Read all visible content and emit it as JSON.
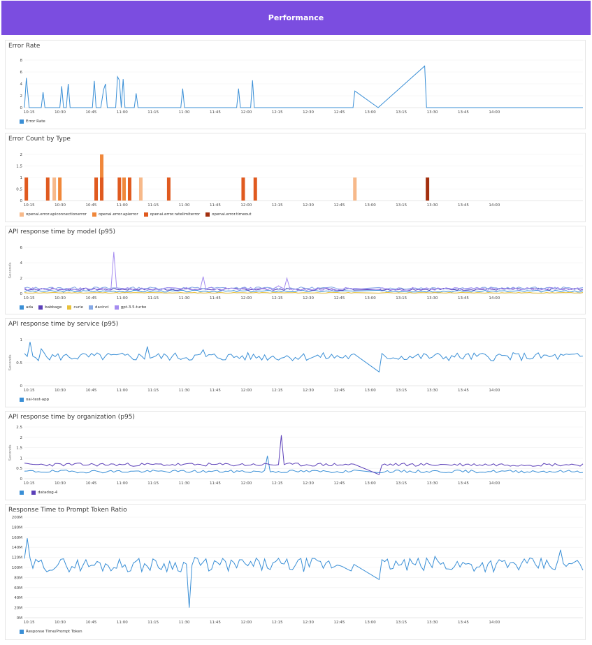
{
  "header": {
    "title": "Performance"
  },
  "colors": {
    "blue": "#3a8fd6",
    "indigo": "#5b3fb8",
    "yellow": "#e8c13a",
    "lightblue": "#86a9e6",
    "lavender": "#a58cf0",
    "peach": "#f7b98a",
    "orange": "#f0873a",
    "redorange": "#e05a1f",
    "darkred": "#a3300f"
  },
  "time_ticks": [
    "10:15",
    "10:30",
    "10:45",
    "11:00",
    "11:15",
    "11:30",
    "11:45",
    "12:00",
    "12:15",
    "12:30",
    "12:45",
    "13:00",
    "13:15",
    "13:30",
    "13:45",
    "14:00"
  ],
  "chart_data": [
    {
      "type": "line",
      "title": "Error Rate",
      "ylim": [
        0,
        8
      ],
      "yticks": [
        "0",
        "2",
        "4",
        "6",
        "8"
      ],
      "legend_placement": "bottom-left",
      "series": [
        {
          "name": "Error Rate",
          "color": "#3a8fd6",
          "points": [
            [
              10.2,
              0
            ],
            [
              10.22,
              5
            ],
            [
              10.25,
              0
            ],
            [
              10.38,
              0
            ],
            [
              10.4,
              2.6
            ],
            [
              10.42,
              0
            ],
            [
              10.58,
              0
            ],
            [
              10.6,
              3.6
            ],
            [
              10.62,
              0
            ],
            [
              10.65,
              0
            ],
            [
              10.67,
              4
            ],
            [
              10.69,
              0
            ],
            [
              10.93,
              0
            ],
            [
              10.95,
              4.5
            ],
            [
              10.97,
              0
            ],
            [
              11.02,
              0
            ],
            [
              11.05,
              3
            ],
            [
              11.07,
              4
            ],
            [
              11.09,
              0
            ],
            [
              11.18,
              0
            ],
            [
              11.2,
              5.2
            ],
            [
              11.22,
              4.6
            ],
            [
              11.24,
              0
            ],
            [
              11.26,
              4.8
            ],
            [
              11.28,
              0
            ],
            [
              11.38,
              0
            ],
            [
              11.4,
              2.4
            ],
            [
              11.42,
              0
            ],
            [
              11.88,
              0
            ],
            [
              11.9,
              3.2
            ],
            [
              11.92,
              0
            ],
            [
              12.48,
              0
            ],
            [
              12.5,
              3.2
            ],
            [
              12.52,
              0
            ],
            [
              12.63,
              0
            ],
            [
              12.65,
              4.6
            ],
            [
              12.67,
              0
            ],
            [
              13.73,
              0
            ],
            [
              13.75,
              2.8
            ],
            [
              14.0,
              0
            ],
            [
              14.5,
              7
            ],
            [
              14.52,
              0
            ],
            [
              16.2,
              0
            ]
          ]
        }
      ]
    },
    {
      "type": "bar",
      "title": "Error Count by Type",
      "ylim": [
        0,
        2
      ],
      "yticks": [
        "0",
        "0.5",
        "1",
        "1.5",
        "2"
      ],
      "legend_placement": "bottom-left",
      "series": [
        {
          "name": "openai.error.apiconnectionerror",
          "color": "#f7b98a",
          "bars": [
            [
              10.52,
              1
            ],
            [
              11.45,
              1
            ],
            [
              13.75,
              1
            ]
          ]
        },
        {
          "name": "openai.error.apierror",
          "color": "#f0873a",
          "bars": [
            [
              10.58,
              1
            ],
            [
              11.03,
              2
            ],
            [
              11.27,
              1
            ]
          ]
        },
        {
          "name": "openai.error.ratelimiterror",
          "color": "#e05a1f",
          "bars": [
            [
              10.22,
              1
            ],
            [
              10.45,
              1
            ],
            [
              10.97,
              1
            ],
            [
              11.03,
              1
            ],
            [
              11.22,
              1
            ],
            [
              11.33,
              1
            ],
            [
              11.75,
              1
            ],
            [
              12.55,
              1
            ],
            [
              12.68,
              1
            ]
          ]
        },
        {
          "name": "openai.error.timeout",
          "color": "#a3300f",
          "bars": [
            [
              14.53,
              1
            ]
          ]
        }
      ]
    },
    {
      "type": "line",
      "title": "API response time by model (p95)",
      "ylabel": "Seconds",
      "ylim": [
        0,
        6
      ],
      "yticks": [
        "0",
        "2",
        "4",
        "6"
      ],
      "legend_placement": "bottom-left",
      "series": [
        {
          "name": "ada",
          "color": "#3a8fd6",
          "base": 0.3,
          "amp": 0.12,
          "seed": 3
        },
        {
          "name": "babbage",
          "color": "#5b3fb8",
          "base": 0.55,
          "amp": 0.15,
          "seed": 7
        },
        {
          "name": "curie",
          "color": "#e8c13a",
          "base": 0.1,
          "amp": 0.05,
          "seed": 11
        },
        {
          "name": "davinci",
          "color": "#86a9e6",
          "base": 0.7,
          "amp": 0.15,
          "seed": 13
        },
        {
          "name": "gpt-3.5-turbo",
          "color": "#a58cf0",
          "base": 0.6,
          "amp": 0.2,
          "seed": 17,
          "spikes": [
            [
              11.15,
              5.4
            ],
            [
              12.1,
              2.2
            ],
            [
              12.9,
              1.0
            ],
            [
              13.0,
              2.0
            ]
          ]
        }
      ]
    },
    {
      "type": "line",
      "title": "API response time by service (p95)",
      "ylabel": "Seconds",
      "ylim": [
        0,
        1
      ],
      "yticks": [
        "0",
        "0.5",
        "1"
      ],
      "legend_placement": "bottom-left",
      "series": [
        {
          "name": "oai-test-app",
          "color": "#3a8fd6",
          "base": 0.63,
          "amp": 0.09,
          "seed": 5,
          "spikes": [
            [
              10.25,
              0.95
            ],
            [
              10.35,
              0.8
            ],
            [
              11.5,
              0.85
            ],
            [
              12.1,
              0.78
            ],
            [
              14.0,
              0.3
            ]
          ]
        }
      ]
    },
    {
      "type": "line",
      "title": "API response time by organization (p95)",
      "ylabel": "Seconds",
      "ylim": [
        0,
        2.5
      ],
      "yticks": [
        "0",
        "0.5",
        "1",
        "1.5",
        "2",
        "2.5"
      ],
      "legend_placement": "bottom-left",
      "series": [
        {
          "name": "",
          "color": "#3a8fd6",
          "base": 0.35,
          "amp": 0.07,
          "seed": 19,
          "spikes": [
            [
              12.78,
              1.1
            ]
          ]
        },
        {
          "name": "datadog-4",
          "color": "#5b3fb8",
          "base": 0.68,
          "amp": 0.08,
          "seed": 23,
          "spikes": [
            [
              12.95,
              2.1
            ],
            [
              13.98,
              1.0
            ],
            [
              14.0,
              0.2
            ]
          ]
        }
      ]
    },
    {
      "type": "line",
      "title": "Response Time to Prompt Token Ratio",
      "ylim": [
        0,
        200
      ],
      "yticks": [
        "0M",
        "20M",
        "40M",
        "60M",
        "80M",
        "100M",
        "120M",
        "140M",
        "160M",
        "180M",
        "200M"
      ],
      "legend_placement": "bottom-left",
      "series": [
        {
          "name": "Response Time/Prompt Token",
          "color": "#3a8fd6",
          "base": 105,
          "amp": 14,
          "seed": 29,
          "spikes": [
            [
              10.22,
              158
            ],
            [
              11.95,
              20
            ],
            [
              12.0,
              120
            ],
            [
              14.0,
              76
            ],
            [
              14.6,
              122
            ],
            [
              15.95,
              135
            ]
          ]
        }
      ]
    }
  ]
}
